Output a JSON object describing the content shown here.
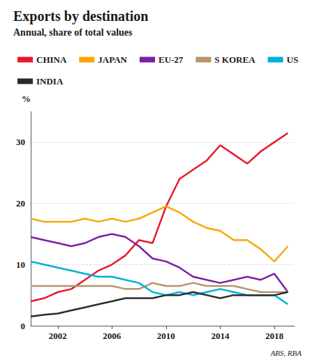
{
  "chart_data": {
    "type": "line",
    "title": "Exports by destination",
    "subtitle": "Annual, share of total values",
    "ylabel": "%",
    "source": "ABS, RBA",
    "x": [
      2000,
      2001,
      2002,
      2003,
      2004,
      2005,
      2006,
      2007,
      2008,
      2009,
      2010,
      2011,
      2012,
      2013,
      2014,
      2015,
      2016,
      2017,
      2018,
      2019
    ],
    "series": [
      {
        "name": "CHINA",
        "color": "#e8192c",
        "values": [
          4.0,
          4.5,
          5.5,
          6.0,
          7.5,
          9.0,
          10.0,
          11.5,
          14.0,
          13.5,
          19.5,
          24.0,
          25.5,
          27.0,
          29.5,
          28.0,
          26.5,
          28.5,
          30.0,
          31.5
        ]
      },
      {
        "name": "JAPAN",
        "color": "#f5a800",
        "values": [
          17.5,
          17.0,
          17.0,
          17.0,
          17.5,
          17.0,
          17.5,
          17.0,
          17.5,
          18.5,
          19.5,
          18.5,
          17.0,
          16.0,
          15.5,
          14.0,
          14.0,
          12.5,
          10.5,
          13.0
        ]
      },
      {
        "name": "EU-27",
        "color": "#7b1fa2",
        "values": [
          14.5,
          14.0,
          13.5,
          13.0,
          13.5,
          14.5,
          15.0,
          14.5,
          13.0,
          11.0,
          10.5,
          9.5,
          8.0,
          7.5,
          7.0,
          7.5,
          8.0,
          7.5,
          8.5,
          5.5
        ]
      },
      {
        "name": "S KOREA",
        "color": "#b5956a",
        "values": [
          6.5,
          6.5,
          6.5,
          6.5,
          6.5,
          6.5,
          6.5,
          6.0,
          6.0,
          7.0,
          6.5,
          6.5,
          7.0,
          6.5,
          6.5,
          6.5,
          6.0,
          5.5,
          5.5,
          5.5
        ]
      },
      {
        "name": "US",
        "color": "#00b0d8",
        "values": [
          10.5,
          10.0,
          9.5,
          9.0,
          8.5,
          8.0,
          8.0,
          7.5,
          7.0,
          5.5,
          5.0,
          5.5,
          5.0,
          5.5,
          6.0,
          5.5,
          5.0,
          5.0,
          5.0,
          3.5
        ]
      },
      {
        "name": "INDIA",
        "color": "#2a2a2a",
        "values": [
          1.5,
          1.8,
          2.0,
          2.5,
          3.0,
          3.5,
          4.0,
          4.5,
          4.5,
          4.5,
          5.0,
          5.0,
          5.5,
          5.0,
          4.5,
          5.0,
          5.0,
          5.0,
          5.0,
          5.5
        ]
      }
    ],
    "xlim": [
      2000,
      2019.5
    ],
    "xticks": [
      2002,
      2006,
      2010,
      2014,
      2018
    ],
    "ylim": [
      0,
      35
    ],
    "yticks": [
      0,
      10,
      20,
      30
    ],
    "grid": true,
    "legend": "top"
  }
}
